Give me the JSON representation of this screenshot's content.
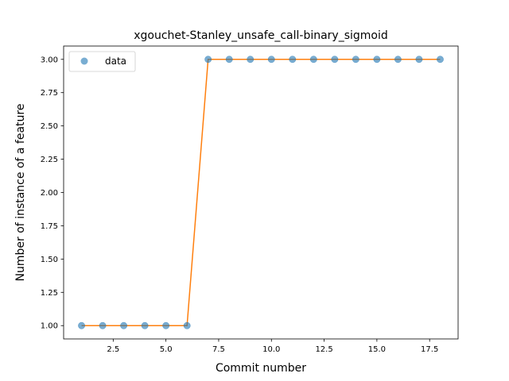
{
  "chart_data": {
    "type": "line",
    "title": "xgouchet-Stanley_unsafe_call-binary_sigmoid",
    "xlabel": "Commit number",
    "ylabel": "Number of instance of a feature",
    "xlim": [
      0.15,
      18.85
    ],
    "ylim": [
      0.9,
      3.1
    ],
    "x_ticks": [
      2.5,
      5.0,
      7.5,
      10.0,
      12.5,
      15.0,
      17.5
    ],
    "x_tick_labels": [
      "2.5",
      "5.0",
      "7.5",
      "10.0",
      "12.5",
      "15.0",
      "17.5"
    ],
    "y_ticks": [
      1.0,
      1.25,
      1.5,
      1.75,
      2.0,
      2.25,
      2.5,
      2.75,
      3.0
    ],
    "y_tick_labels": [
      "1.00",
      "1.25",
      "1.50",
      "1.75",
      "2.00",
      "2.25",
      "2.50",
      "2.75",
      "3.00"
    ],
    "grid": false,
    "legend_position": "top-left",
    "series": [
      {
        "name": "data",
        "kind": "scatter",
        "color": "#1f77b4",
        "x": [
          1,
          2,
          3,
          4,
          5,
          6,
          7,
          8,
          9,
          10,
          11,
          12,
          13,
          14,
          15,
          16,
          17,
          18
        ],
        "y": [
          1,
          1,
          1,
          1,
          1,
          1,
          3,
          3,
          3,
          3,
          3,
          3,
          3,
          3,
          3,
          3,
          3,
          3
        ]
      },
      {
        "kind": "line",
        "color": "#ff7f0e",
        "x": [
          1,
          2,
          3,
          4,
          5,
          6,
          7,
          8,
          9,
          10,
          11,
          12,
          13,
          14,
          15,
          16,
          17,
          18
        ],
        "y": [
          1,
          1,
          1,
          1,
          1,
          1,
          3,
          3,
          3,
          3,
          3,
          3,
          3,
          3,
          3,
          3,
          3,
          3
        ]
      }
    ]
  }
}
